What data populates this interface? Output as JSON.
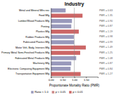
{
  "chart_data": {
    "type": "bar",
    "orientation": "horizontal",
    "title": "Industry",
    "x_label": "Proportionate Mortality Ratio (PMR)",
    "categories": [
      "Metal and Mineral Mfrs nec",
      "Food Mfg",
      "Lumber/Wood Products Mfg",
      "Printing",
      "Plastics Mfg",
      "Rubber Products Mfg",
      "Fabricated Plastics Mfg",
      "Motor Veh, Body, Interiors Mfg",
      "Primary Metal Semi-Finished Products Mfg",
      "Fabricated Metal Products Mfg",
      "Machinery Mfg",
      "Electronic Computing Equipment Mfg",
      "Transportation Equipment Mfg"
    ],
    "values": [
      0.63,
      1.35,
      0.9,
      0.87,
      1.19,
      0.98,
      0.99,
      1.49,
      1.25,
      1.08,
      0.87,
      0.84,
      1.27
    ],
    "colors": [
      "#9999bb",
      "#cc6666",
      "#9999bb",
      "#9999bb",
      "#cc6666",
      "#9999bb",
      "#9999bb",
      "#cc6666",
      "#cc6666",
      "#9999bb",
      "#9999bb",
      "#9999bb",
      "#cc6666"
    ],
    "data_labels": true,
    "value_labels": [
      "PMR = 0.63",
      "PMR = 1.35",
      "PMR = 0.90",
      "PMR = 0.87",
      "PMR = 1.19",
      "PMR = 0.98",
      "PMR = 0.99",
      "PMR = 1.49",
      "PMR = 1.25",
      "PMR = 1.08",
      "PMR = 0.87",
      "PMR = 0.84",
      "PMR = 1.27"
    ],
    "reference_line": 1.0,
    "xlim": [
      0,
      2.0
    ],
    "xticks": [
      {
        "value": 0.0,
        "label": "0.00"
      },
      {
        "value": 0.5,
        "label": "0.50"
      },
      {
        "value": 1.0,
        "label": "1.00"
      },
      {
        "value": 1.5,
        "label": "1.50"
      }
    ],
    "grid": false,
    "legend": "bottom",
    "legend_items": [
      {
        "name": "Ratio < 1.0",
        "color": "#9999bb"
      },
      {
        "name": "p < 0.05",
        "color": "#cc8888"
      },
      {
        "name": "p < 0.01",
        "color": "#cc6666"
      }
    ]
  }
}
